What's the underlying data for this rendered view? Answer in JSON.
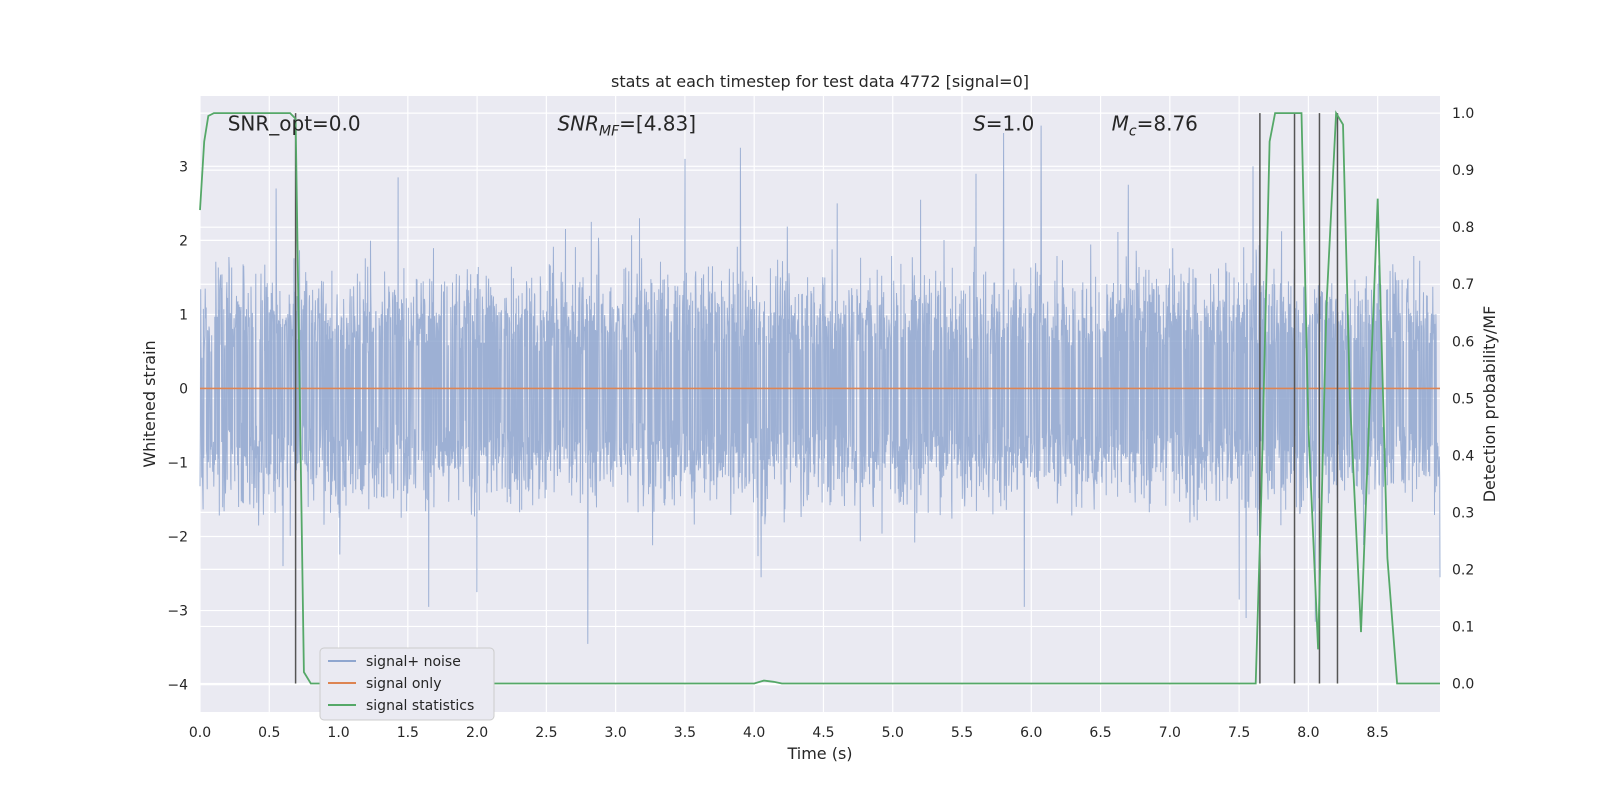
{
  "chart_data": {
    "type": "line",
    "title": "stats at each timestep for test data 4772 [signal=0]",
    "xlabel": "Time (s)",
    "ylabel": "Whitened strain",
    "y2label": "Detection probability/MF",
    "xlim": [
      0.0,
      8.95
    ],
    "ylim": [
      -4.37,
      3.95
    ],
    "y2lim": [
      -0.05,
      1.03
    ],
    "x_ticks": [
      "0.0",
      "0.5",
      "1.0",
      "1.5",
      "2.0",
      "2.5",
      "3.0",
      "3.5",
      "4.0",
      "4.5",
      "5.0",
      "5.5",
      "6.0",
      "6.5",
      "7.0",
      "7.5",
      "8.0",
      "8.5"
    ],
    "y_ticks": [
      "3",
      "2",
      "1",
      "0",
      "−1",
      "−2",
      "−3",
      "−4"
    ],
    "y2_ticks": [
      "1.0",
      "0.9",
      "0.8",
      "0.7",
      "0.6",
      "0.5",
      "0.4",
      "0.3",
      "0.2",
      "0.1",
      "0.0"
    ],
    "grid": true,
    "legend_position": "lower-left",
    "annotations": [
      {
        "text": "SNR_opt=0.0",
        "x": 0.2,
        "y_frac": 0.965
      },
      {
        "text": "SNR",
        "sub": "MF",
        "rest": "=[4.83]",
        "italic": true,
        "x": 2.58,
        "y_frac": 0.965
      },
      {
        "text": "S",
        "sub": "",
        "rest": "=1.0",
        "italic": true,
        "x": 5.58,
        "y_frac": 0.965
      },
      {
        "text": "M",
        "sub": "c",
        "rest": "=8.76",
        "italic": true,
        "x": 6.58,
        "y_frac": 0.965
      }
    ],
    "series": [
      {
        "name": "signal+ noise",
        "color": "#8fa6cf",
        "axis": "left",
        "description_stats": {
          "typical_band": [
            -1.7,
            1.8
          ],
          "sample_peaks": [
            [
              0.55,
              2.7
            ],
            [
              0.6,
              -2.4
            ],
            [
              1.43,
              2.85
            ],
            [
              1.65,
              -2.95
            ],
            [
              2.0,
              -2.75
            ],
            [
              2.8,
              -3.45
            ],
            [
              3.5,
              3.1
            ],
            [
              3.9,
              3.25
            ],
            [
              4.05,
              -2.55
            ],
            [
              4.6,
              2.5
            ],
            [
              5.2,
              2.55
            ],
            [
              5.6,
              2.9
            ],
            [
              5.8,
              3.45
            ],
            [
              5.95,
              -2.95
            ],
            [
              6.07,
              3.55
            ],
            [
              6.7,
              2.75
            ],
            [
              7.5,
              -2.85
            ],
            [
              7.55,
              -3.1
            ],
            [
              7.6,
              3.0
            ],
            [
              8.05,
              -3.15
            ],
            [
              8.95,
              -2.55
            ]
          ]
        },
        "values": []
      },
      {
        "name": "signal only",
        "color": "#dd8452",
        "axis": "left",
        "x": [
          0.0,
          8.95
        ],
        "y": [
          0.0,
          0.0
        ]
      },
      {
        "name": "signal statistics",
        "color": "#55a868",
        "axis": "right",
        "x": [
          0.0,
          0.03,
          0.06,
          0.1,
          0.15,
          0.65,
          0.69,
          0.72,
          0.75,
          0.8,
          4.0,
          4.07,
          4.14,
          4.2,
          7.62,
          7.66,
          7.72,
          7.76,
          7.95,
          8.0,
          8.07,
          8.13,
          8.2,
          8.25,
          8.3,
          8.38,
          8.44,
          8.5,
          8.57,
          8.64,
          8.95
        ],
        "y": [
          0.83,
          0.95,
          0.995,
          1.0,
          1.0,
          1.0,
          0.99,
          0.5,
          0.02,
          0.0,
          0.0,
          0.005,
          0.003,
          0.0,
          0.0,
          0.33,
          0.95,
          1.0,
          1.0,
          0.45,
          0.06,
          0.66,
          1.0,
          0.98,
          0.5,
          0.09,
          0.47,
          0.85,
          0.22,
          0.0,
          0.0
        ]
      }
    ],
    "vertical_markers": {
      "color": "#555555",
      "x": [
        0.69,
        7.65,
        7.9,
        8.08,
        8.21
      ],
      "y2_top": 1.0,
      "y2_bottom": 0.0
    }
  }
}
